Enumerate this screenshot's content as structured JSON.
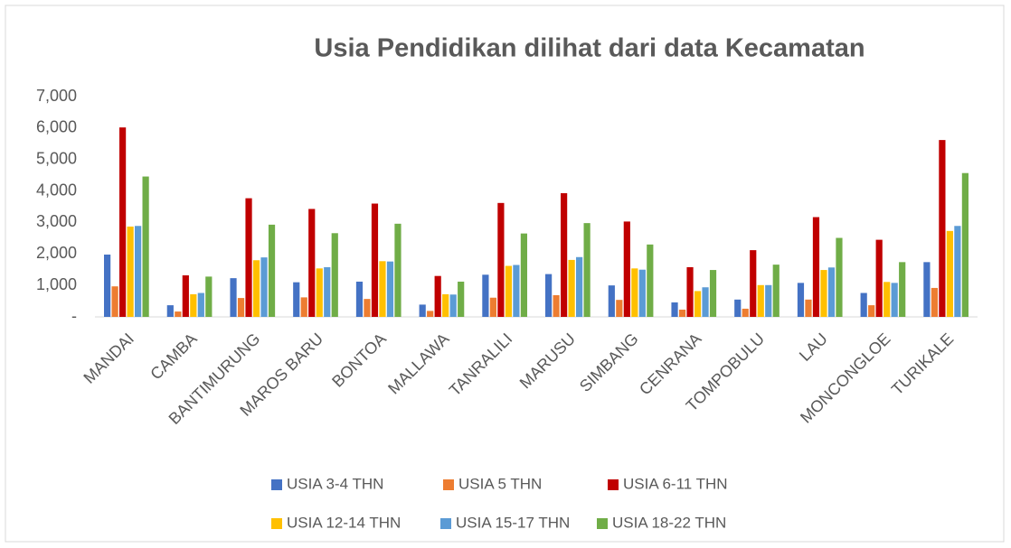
{
  "chart_data": {
    "type": "bar",
    "title": "Usia Pendidikan dilihat dari data Kecamatan",
    "categories": [
      "MANDAI",
      "CAMBA",
      "BANTIMURUNG",
      "MAROS BARU",
      "BONTOA",
      "MALLAWA",
      "TANRALILI",
      "MARUSU",
      "SIMBANG",
      "CENRANA",
      "TOMPOBULU",
      "LAU",
      "MONCONGLOE",
      "TURIKALE"
    ],
    "series": [
      {
        "name": "USIA 3-4 THN",
        "color": "#4472c4",
        "values": [
          1980,
          370,
          1230,
          1100,
          1120,
          390,
          1340,
          1360,
          1000,
          460,
          550,
          1080,
          760,
          1740
        ]
      },
      {
        "name": "USIA 5 THN",
        "color": "#ed7d31",
        "values": [
          970,
          170,
          600,
          620,
          570,
          190,
          610,
          690,
          540,
          230,
          260,
          550,
          370,
          920
        ]
      },
      {
        "name": "USIA 6-11 THN",
        "color": "#c00000",
        "values": [
          6020,
          1320,
          3770,
          3430,
          3600,
          1300,
          3620,
          3930,
          3030,
          1580,
          2120,
          3170,
          2450,
          5620
        ]
      },
      {
        "name": "USIA 12-14 THN",
        "color": "#ffc000",
        "values": [
          2870,
          720,
          1800,
          1540,
          1770,
          720,
          1620,
          1810,
          1540,
          820,
          1010,
          1490,
          1110,
          2730
        ]
      },
      {
        "name": "USIA 15-17 THN",
        "color": "#5b9bd5",
        "values": [
          2890,
          760,
          1890,
          1580,
          1760,
          710,
          1650,
          1900,
          1500,
          940,
          1010,
          1570,
          1080,
          2890
        ]
      },
      {
        "name": "USIA 18-22 THN",
        "color": "#70ad47",
        "values": [
          4460,
          1280,
          2930,
          2660,
          2960,
          1120,
          2650,
          2980,
          2300,
          1490,
          1660,
          2510,
          1740,
          4570
        ]
      }
    ],
    "ylim": [
      0,
      7000
    ],
    "yticks": [
      {
        "value": 0,
        "label": "-"
      },
      {
        "value": 1000,
        "label": "1,000"
      },
      {
        "value": 2000,
        "label": "2,000"
      },
      {
        "value": 3000,
        "label": "3,000"
      },
      {
        "value": 4000,
        "label": "4,000"
      },
      {
        "value": 5000,
        "label": "5,000"
      },
      {
        "value": 6000,
        "label": "6,000"
      },
      {
        "value": 7000,
        "label": "7,000"
      }
    ],
    "grid": false,
    "legend": "bottom"
  }
}
